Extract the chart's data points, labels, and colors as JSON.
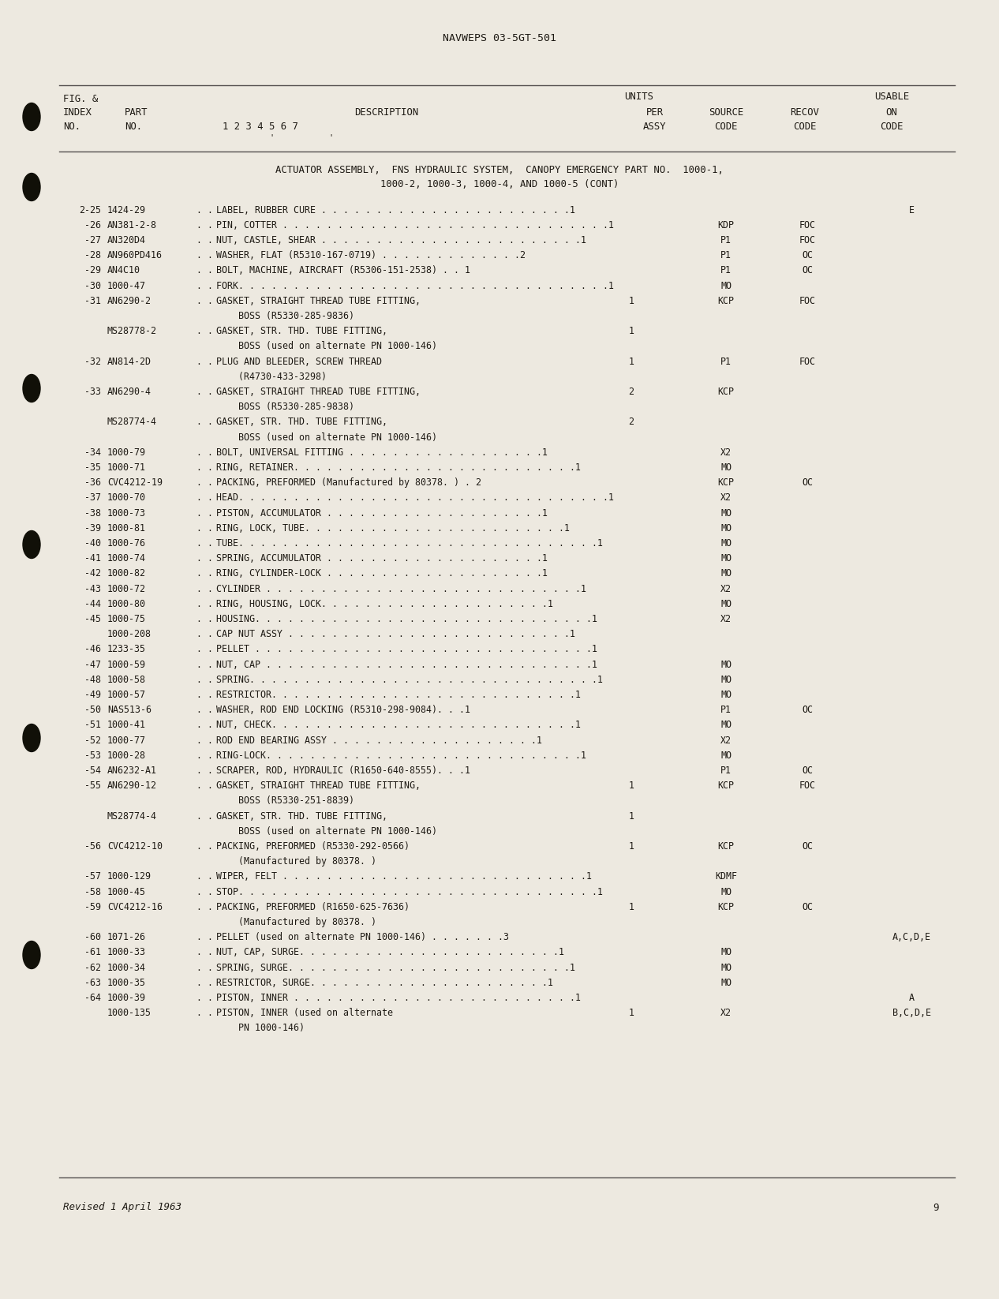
{
  "page_header": "NAVWEPS 03-5GT-501",
  "page_number": "9",
  "footer_left": "Revised 1 April 1963",
  "section_title_line1": "ACTUATOR ASSEMBLY,  FNS HYDRAULIC SYSTEM,  CANOPY EMERGENCY PART NO.  1000-1,",
  "section_title_line2": "1000-2, 1000-3, 1000-4, AND 1000-5 (CONT)",
  "rows": [
    {
      "fig": "2-25",
      "part": "1424-29",
      "dots": 2,
      "desc": "LABEL, RUBBER CURE . . . . . . . . . . . . . . . . . . . . . . .1",
      "qty": "",
      "source": "",
      "recov": "",
      "usable": "E"
    },
    {
      "fig": "-26",
      "part": "AN381-2-8",
      "dots": 2,
      "desc": "PIN, COTTER . . . . . . . . . . . . . . . . . . . . . . . . . . . . . .1",
      "qty": "",
      "source": "KDP",
      "recov": "FOC",
      "usable": ""
    },
    {
      "fig": "-27",
      "part": "AN320D4",
      "dots": 2,
      "desc": "NUT, CASTLE, SHEAR . . . . . . . . . . . . . . . . . . . . . . . .1",
      "qty": "",
      "source": "P1",
      "recov": "FOC",
      "usable": ""
    },
    {
      "fig": "-28",
      "part": "AN960PD416",
      "dots": 2,
      "desc": "WASHER, FLAT (R5310-167-0719) . . . . . . . . . . . . .2",
      "qty": "",
      "source": "P1",
      "recov": "OC",
      "usable": ""
    },
    {
      "fig": "-29",
      "part": "AN4C10",
      "dots": 2,
      "desc": "BOLT, MACHINE, AIRCRAFT (R5306-151-2538) . . 1",
      "qty": "",
      "source": "P1",
      "recov": "OC",
      "usable": ""
    },
    {
      "fig": "-30",
      "part": "1000-47",
      "dots": 2,
      "desc": "FORK. . . . . . . . . . . . . . . . . . . . . . . . . . . . . . . . . .1",
      "qty": "",
      "source": "MO",
      "recov": "",
      "usable": ""
    },
    {
      "fig": "-31",
      "part": "AN6290-2",
      "dots": 2,
      "desc": "GASKET, STRAIGHT THREAD TUBE FITTING,",
      "qty": "1",
      "source": "KCP",
      "recov": "FOC",
      "usable": ""
    },
    {
      "fig": "",
      "part": "",
      "dots": 0,
      "desc": "    BOSS (R5330-285-9836)",
      "qty": "",
      "source": "",
      "recov": "",
      "usable": ""
    },
    {
      "fig": "",
      "part": "MS28778-2",
      "dots": 2,
      "desc": "GASKET, STR. THD. TUBE FITTING,",
      "qty": "1",
      "source": "",
      "recov": "",
      "usable": ""
    },
    {
      "fig": "",
      "part": "",
      "dots": 0,
      "desc": "    BOSS (used on alternate PN 1000-146)",
      "qty": "",
      "source": "",
      "recov": "",
      "usable": ""
    },
    {
      "fig": "-32",
      "part": "AN814-2D",
      "dots": 2,
      "desc": "PLUG AND BLEEDER, SCREW THREAD",
      "qty": "1",
      "source": "P1",
      "recov": "FOC",
      "usable": ""
    },
    {
      "fig": "",
      "part": "",
      "dots": 0,
      "desc": "    (R4730-433-3298)",
      "qty": "",
      "source": "",
      "recov": "",
      "usable": ""
    },
    {
      "fig": "-33",
      "part": "AN6290-4",
      "dots": 2,
      "desc": "GASKET, STRAIGHT THREAD TUBE FITTING,",
      "qty": "2",
      "source": "KCP",
      "recov": "",
      "usable": ""
    },
    {
      "fig": "",
      "part": "",
      "dots": 0,
      "desc": "    BOSS (R5330-285-9838)",
      "qty": "",
      "source": "",
      "recov": "",
      "usable": ""
    },
    {
      "fig": "",
      "part": "MS28774-4",
      "dots": 2,
      "desc": "GASKET, STR. THD. TUBE FITTING,",
      "qty": "2",
      "source": "",
      "recov": "",
      "usable": ""
    },
    {
      "fig": "",
      "part": "",
      "dots": 0,
      "desc": "    BOSS (used on alternate PN 1000-146)",
      "qty": "",
      "source": "",
      "recov": "",
      "usable": ""
    },
    {
      "fig": "-34",
      "part": "1000-79",
      "dots": 2,
      "desc": "BOLT, UNIVERSAL FITTING . . . . . . . . . . . . . . . . . .1",
      "qty": "",
      "source": "X2",
      "recov": "",
      "usable": ""
    },
    {
      "fig": "-35",
      "part": "1000-71",
      "dots": 2,
      "desc": "RING, RETAINER. . . . . . . . . . . . . . . . . . . . . . . . . .1",
      "qty": "",
      "source": "MO",
      "recov": "",
      "usable": ""
    },
    {
      "fig": "-36",
      "part": "CVC4212-19",
      "dots": 2,
      "desc": "PACKING, PREFORMED (Manufactured by 80378. ) . 2",
      "qty": "",
      "source": "KCP",
      "recov": "OC",
      "usable": ""
    },
    {
      "fig": "-37",
      "part": "1000-70",
      "dots": 2,
      "desc": "HEAD. . . . . . . . . . . . . . . . . . . . . . . . . . . . . . . . . .1",
      "qty": "",
      "source": "X2",
      "recov": "",
      "usable": ""
    },
    {
      "fig": "-38",
      "part": "1000-73",
      "dots": 2,
      "desc": "PISTON, ACCUMULATOR . . . . . . . . . . . . . . . . . . . .1",
      "qty": "",
      "source": "MO",
      "recov": "",
      "usable": ""
    },
    {
      "fig": "-39",
      "part": "1000-81",
      "dots": 2,
      "desc": "RING, LOCK, TUBE. . . . . . . . . . . . . . . . . . . . . . . .1",
      "qty": "",
      "source": "MO",
      "recov": "",
      "usable": ""
    },
    {
      "fig": "-40",
      "part": "1000-76",
      "dots": 2,
      "desc": "TUBE. . . . . . . . . . . . . . . . . . . . . . . . . . . . . . . . .1",
      "qty": "",
      "source": "MO",
      "recov": "",
      "usable": ""
    },
    {
      "fig": "-41",
      "part": "1000-74",
      "dots": 2,
      "desc": "SPRING, ACCUMULATOR . . . . . . . . . . . . . . . . . . . .1",
      "qty": "",
      "source": "MO",
      "recov": "",
      "usable": ""
    },
    {
      "fig": "-42",
      "part": "1000-82",
      "dots": 2,
      "desc": "RING, CYLINDER-LOCK . . . . . . . . . . . . . . . . . . . .1",
      "qty": "",
      "source": "MO",
      "recov": "",
      "usable": ""
    },
    {
      "fig": "-43",
      "part": "1000-72",
      "dots": 2,
      "desc": "CYLINDER . . . . . . . . . . . . . . . . . . . . . . . . . . . . .1",
      "qty": "",
      "source": "X2",
      "recov": "",
      "usable": ""
    },
    {
      "fig": "-44",
      "part": "1000-80",
      "dots": 2,
      "desc": "RING, HOUSING, LOCK. . . . . . . . . . . . . . . . . . . . .1",
      "qty": "",
      "source": "MO",
      "recov": "",
      "usable": ""
    },
    {
      "fig": "-45",
      "part": "1000-75",
      "dots": 2,
      "desc": "HOUSING. . . . . . . . . . . . . . . . . . . . . . . . . . . . . . .1",
      "qty": "",
      "source": "X2",
      "recov": "",
      "usable": ""
    },
    {
      "fig": "",
      "part": "1000-208",
      "dots": 2,
      "desc": "CAP NUT ASSY . . . . . . . . . . . . . . . . . . . . . . . . . .1",
      "qty": "",
      "source": "",
      "recov": "",
      "usable": ""
    },
    {
      "fig": "-46",
      "part": "1233-35",
      "dots": 3,
      "desc": "PELLET . . . . . . . . . . . . . . . . . . . . . . . . . . . . . . .1",
      "qty": "",
      "source": "",
      "recov": "",
      "usable": ""
    },
    {
      "fig": "-47",
      "part": "1000-59",
      "dots": 3,
      "desc": "NUT, CAP . . . . . . . . . . . . . . . . . . . . . . . . . . . . . .1",
      "qty": "",
      "source": "MO",
      "recov": "",
      "usable": ""
    },
    {
      "fig": "-48",
      "part": "1000-58",
      "dots": 2,
      "desc": "SPRING. . . . . . . . . . . . . . . . . . . . . . . . . . . . . . . .1",
      "qty": "",
      "source": "MO",
      "recov": "",
      "usable": ""
    },
    {
      "fig": "-49",
      "part": "1000-57",
      "dots": 2,
      "desc": "RESTRICTOR. . . . . . . . . . . . . . . . . . . . . . . . . . . .1",
      "qty": "",
      "source": "MO",
      "recov": "",
      "usable": ""
    },
    {
      "fig": "-50",
      "part": "NAS513-6",
      "dots": 2,
      "desc": "WASHER, ROD END LOCKING (R5310-298-9084). . .1",
      "qty": "",
      "source": "P1",
      "recov": "OC",
      "usable": ""
    },
    {
      "fig": "-51",
      "part": "1000-41",
      "dots": 2,
      "desc": "NUT, CHECK. . . . . . . . . . . . . . . . . . . . . . . . . . . .1",
      "qty": "",
      "source": "MO",
      "recov": "",
      "usable": ""
    },
    {
      "fig": "-52",
      "part": "1000-77",
      "dots": 2,
      "desc": "ROD END BEARING ASSY . . . . . . . . . . . . . . . . . . .1",
      "qty": "",
      "source": "X2",
      "recov": "",
      "usable": ""
    },
    {
      "fig": "-53",
      "part": "1000-28",
      "dots": 2,
      "desc": "RING-LOCK. . . . . . . . . . . . . . . . . . . . . . . . . . . . .1",
      "qty": "",
      "source": "MO",
      "recov": "",
      "usable": ""
    },
    {
      "fig": "-54",
      "part": "AN6232-A1",
      "dots": 2,
      "desc": "SCRAPER, ROD, HYDRAULIC (R1650-640-8555). . .1",
      "qty": "",
      "source": "P1",
      "recov": "OC",
      "usable": ""
    },
    {
      "fig": "-55",
      "part": "AN6290-12",
      "dots": 2,
      "desc": "GASKET, STRAIGHT THREAD TUBE FITTING,",
      "qty": "1",
      "source": "KCP",
      "recov": "FOC",
      "usable": ""
    },
    {
      "fig": "",
      "part": "",
      "dots": 0,
      "desc": "    BOSS (R5330-251-8839)",
      "qty": "",
      "source": "",
      "recov": "",
      "usable": ""
    },
    {
      "fig": "",
      "part": "MS28774-4",
      "dots": 2,
      "desc": "GASKET, STR. THD. TUBE FITTING,",
      "qty": "1",
      "source": "",
      "recov": "",
      "usable": ""
    },
    {
      "fig": "",
      "part": "",
      "dots": 0,
      "desc": "    BOSS (used on alternate PN 1000-146)",
      "qty": "",
      "source": "",
      "recov": "",
      "usable": ""
    },
    {
      "fig": "-56",
      "part": "CVC4212-10",
      "dots": 2,
      "desc": "PACKING, PREFORMED (R5330-292-0566)",
      "qty": "1",
      "source": "KCP",
      "recov": "OC",
      "usable": ""
    },
    {
      "fig": "",
      "part": "",
      "dots": 0,
      "desc": "    (Manufactured by 80378. )",
      "qty": "",
      "source": "",
      "recov": "",
      "usable": ""
    },
    {
      "fig": "-57",
      "part": "1000-129",
      "dots": 2,
      "desc": "WIPER, FELT . . . . . . . . . . . . . . . . . . . . . . . . . . . .1",
      "qty": "",
      "source": "KDMF",
      "recov": "",
      "usable": ""
    },
    {
      "fig": "-58",
      "part": "1000-45",
      "dots": 2,
      "desc": "STOP. . . . . . . . . . . . . . . . . . . . . . . . . . . . . . . . .1",
      "qty": "",
      "source": "MO",
      "recov": "",
      "usable": ""
    },
    {
      "fig": "-59",
      "part": "CVC4212-16",
      "dots": 2,
      "desc": "PACKING, PREFORMED (R1650-625-7636)",
      "qty": "1",
      "source": "KCP",
      "recov": "OC",
      "usable": ""
    },
    {
      "fig": "",
      "part": "",
      "dots": 0,
      "desc": "    (Manufactured by 80378. )",
      "qty": "",
      "source": "",
      "recov": "",
      "usable": ""
    },
    {
      "fig": "-60",
      "part": "1071-26",
      "dots": 2,
      "desc": "PELLET (used on alternate PN 1000-146) . . . . . . .3",
      "qty": "",
      "source": "",
      "recov": "",
      "usable": "A,C,D,E"
    },
    {
      "fig": "-61",
      "part": "1000-33",
      "dots": 2,
      "desc": "NUT, CAP, SURGE. . . . . . . . . . . . . . . . . . . . . . . .1",
      "qty": "",
      "source": "MO",
      "recov": "",
      "usable": ""
    },
    {
      "fig": "-62",
      "part": "1000-34",
      "dots": 2,
      "desc": "SPRING, SURGE. . . . . . . . . . . . . . . . . . . . . . . . . .1",
      "qty": "",
      "source": "MO",
      "recov": "",
      "usable": ""
    },
    {
      "fig": "-63",
      "part": "1000-35",
      "dots": 2,
      "desc": "RESTRICTOR, SURGE. . . . . . . . . . . . . . . . . . . . . .1",
      "qty": "",
      "source": "MO",
      "recov": "",
      "usable": ""
    },
    {
      "fig": "-64",
      "part": "1000-39",
      "dots": 2,
      "desc": "PISTON, INNER . . . . . . . . . . . . . . . . . . . . . . . . . .1",
      "qty": "",
      "source": "",
      "recov": "",
      "usable": "A"
    },
    {
      "fig": "",
      "part": "1000-135",
      "dots": 2,
      "desc": "PISTON, INNER (used on alternate",
      "qty": "1",
      "source": "X2",
      "recov": "",
      "usable": "B,C,D,E"
    },
    {
      "fig": "",
      "part": "",
      "dots": 0,
      "desc": "    PN 1000-146)",
      "qty": "",
      "source": "",
      "recov": "",
      "usable": ""
    }
  ],
  "bg_color": "#ede9e0",
  "text_color": "#1e1a14",
  "line_color": "#555050"
}
